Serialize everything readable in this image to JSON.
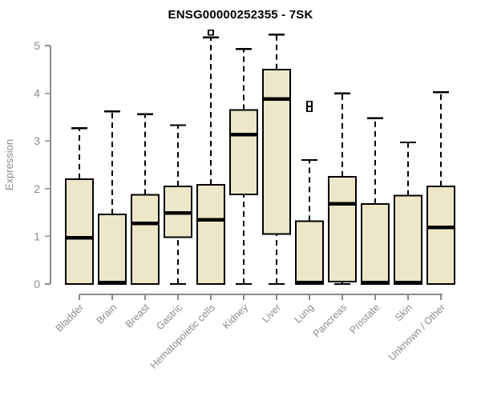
{
  "chart_data": {
    "type": "boxplot",
    "title": "ENSG00000252355 - 7SK",
    "xlabel": "",
    "ylabel": "Expression",
    "ylim": [
      0,
      5
    ],
    "yticks": [
      "0",
      "1",
      "2",
      "3",
      "4",
      "5"
    ],
    "grid": false,
    "legend": false,
    "categories": [
      "Bladder",
      "Brain",
      "Breast",
      "Gastric",
      "Hematopoietic cells",
      "Kidney",
      "Liver",
      "Lung",
      "Pancreas",
      "Prostate",
      "Skin",
      "Unknown / Other"
    ],
    "boxes": [
      {
        "category": "Bladder",
        "low": 0,
        "q1": 0,
        "median": 0.97,
        "q3": 2.2,
        "high": 3.27,
        "outliers": []
      },
      {
        "category": "Brain",
        "low": 0,
        "q1": 0,
        "median": 0.03,
        "q3": 1.46,
        "high": 3.62,
        "outliers": []
      },
      {
        "category": "Breast",
        "low": 0,
        "q1": 0,
        "median": 1.27,
        "q3": 1.87,
        "high": 3.56,
        "outliers": []
      },
      {
        "category": "Gastric",
        "low": 0,
        "q1": 0.98,
        "median": 1.49,
        "q3": 2.05,
        "high": 3.33,
        "outliers": []
      },
      {
        "category": "Hematopoietic cells",
        "low": 0,
        "q1": 0,
        "median": 1.35,
        "q3": 2.08,
        "high": 5.17,
        "outliers": [
          5.27
        ]
      },
      {
        "category": "Kidney",
        "low": 0,
        "q1": 1.88,
        "median": 3.13,
        "q3": 3.65,
        "high": 4.93,
        "outliers": []
      },
      {
        "category": "Liver",
        "low": 0,
        "q1": 1.05,
        "median": 3.88,
        "q3": 4.5,
        "high": 5.23,
        "outliers": []
      },
      {
        "category": "Lung",
        "low": 0,
        "q1": 0,
        "median": 0.03,
        "q3": 1.32,
        "high": 2.6,
        "outliers": [
          3.67,
          3.78
        ]
      },
      {
        "category": "Pancreas",
        "low": 0,
        "q1": 0.05,
        "median": 1.68,
        "q3": 2.25,
        "high": 4.0,
        "outliers": []
      },
      {
        "category": "Prostate",
        "low": 0,
        "q1": 0,
        "median": 0.03,
        "q3": 1.68,
        "high": 3.48,
        "outliers": []
      },
      {
        "category": "Skin",
        "low": 0,
        "q1": 0,
        "median": 0.03,
        "q3": 1.85,
        "high": 2.97,
        "outliers": []
      },
      {
        "category": "Unknown / Other",
        "low": 0,
        "q1": 0,
        "median": 1.19,
        "q3": 2.05,
        "high": 4.02,
        "outliers": []
      }
    ],
    "colors": {
      "box_fill": "#ECE7C8",
      "box_stroke": "#000000",
      "median": "#000000",
      "whisker": "#000000",
      "outlier_stroke": "#000000",
      "outlier_fill": "#ffffff",
      "axis": "#8B8B8B",
      "tick_label": "#8B8B8B",
      "title": "#000000"
    }
  }
}
